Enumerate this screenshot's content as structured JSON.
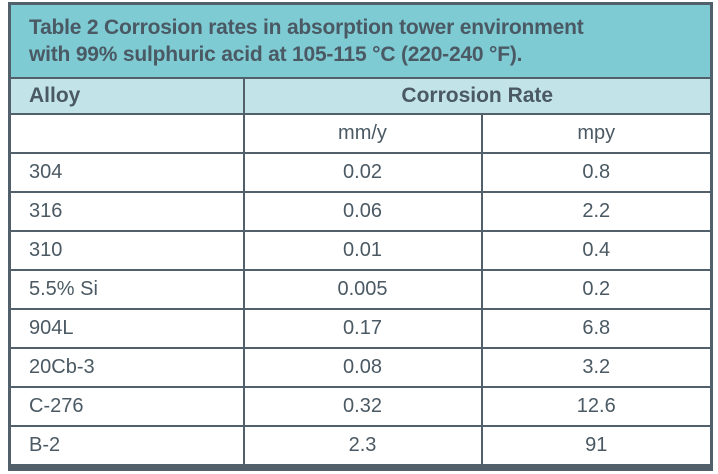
{
  "colors": {
    "title_background": "#7ECBD4",
    "header_background": "#C2E4E8",
    "border": "#51606B",
    "text": "#4A5963",
    "cell_background": "#FFFFFF"
  },
  "table": {
    "title_line1": "Table 2 Corrosion rates in absorption tower environment",
    "title_line2": "with 99% sulphuric acid at 105-115 °C (220-240 °F).",
    "columns": {
      "alloy_header": "Alloy",
      "group_header": "Corrosion Rate",
      "unit_mm": "mm/y",
      "unit_mpy": "mpy"
    },
    "rows": [
      {
        "alloy": "304",
        "mm_y": "0.02",
        "mpy": "0.8"
      },
      {
        "alloy": "316",
        "mm_y": "0.06",
        "mpy": "2.2"
      },
      {
        "alloy": "310",
        "mm_y": "0.01",
        "mpy": "0.4"
      },
      {
        "alloy": "5.5% Si",
        "mm_y": "0.005",
        "mpy": "0.2"
      },
      {
        "alloy": "904L",
        "mm_y": "0.17",
        "mpy": "6.8"
      },
      {
        "alloy": "20Cb-3",
        "mm_y": "0.08",
        "mpy": "3.2"
      },
      {
        "alloy": "C-276",
        "mm_y": "0.32",
        "mpy": "12.6"
      },
      {
        "alloy": "B-2",
        "mm_y": "2.3",
        "mpy": "91"
      }
    ]
  }
}
